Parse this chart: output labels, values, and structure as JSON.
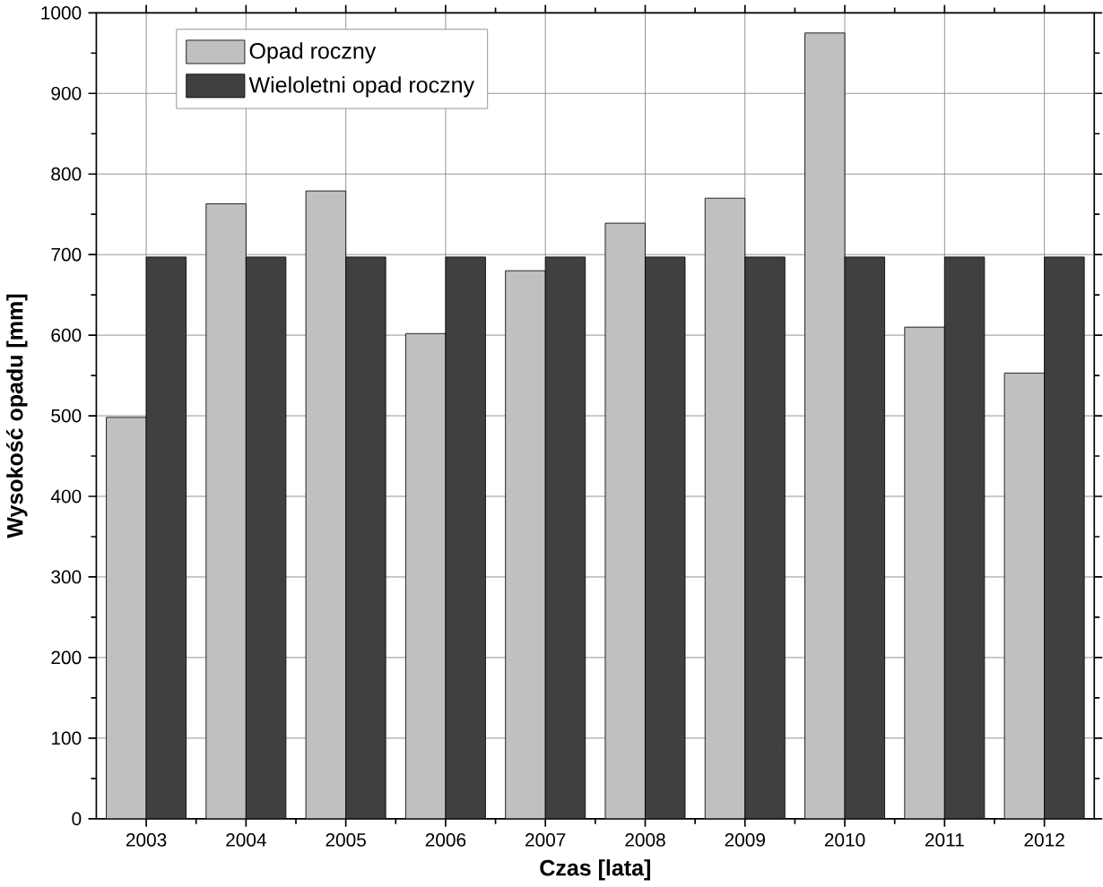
{
  "chart_data": {
    "type": "bar",
    "xlabel": "Czas [lata]",
    "ylabel": "Wysokość opadu [mm]",
    "categories": [
      "2003",
      "2004",
      "2005",
      "2006",
      "2007",
      "2008",
      "2009",
      "2010",
      "2011",
      "2012"
    ],
    "series": [
      {
        "name": "Opad roczny",
        "color": "#c0c0c0",
        "values": [
          498,
          763,
          779,
          602,
          680,
          739,
          770,
          975,
          610,
          553
        ]
      },
      {
        "name": "Wieloletni opad roczny",
        "color": "#404040",
        "values": [
          697,
          697,
          697,
          697,
          697,
          697,
          697,
          697,
          697,
          697
        ]
      }
    ],
    "ylim": [
      0,
      1000
    ],
    "yticks": [
      0,
      100,
      200,
      300,
      400,
      500,
      600,
      700,
      800,
      900,
      1000
    ],
    "grid": true,
    "legend": "top left"
  }
}
